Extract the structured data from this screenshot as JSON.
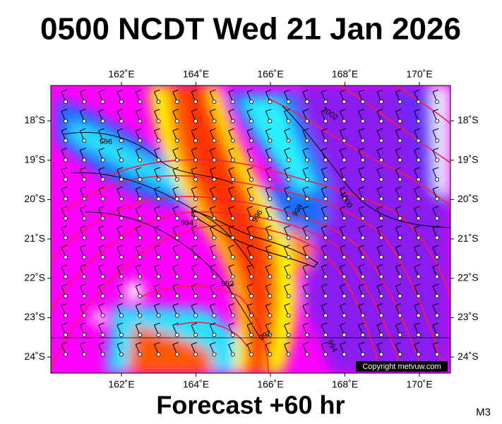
{
  "title": "0500 NCDT Wed 21 Jan 2026",
  "footer": "Forecast +60 hr",
  "model": "M3",
  "copyright": "Copyright metvuw.com",
  "map": {
    "longitude_labels": [
      "162˚E",
      "164˚E",
      "166˚E",
      "168˚E",
      "170˚E"
    ],
    "latitude_labels": [
      "18˚S",
      "19˚S",
      "20˚S",
      "21˚S",
      "22˚S",
      "23˚S",
      "24˚S"
    ],
    "contour_labels": [
      "996",
      "994",
      "996",
      "998",
      "1000",
      "1002",
      "992",
      "992",
      "994"
    ]
  }
}
